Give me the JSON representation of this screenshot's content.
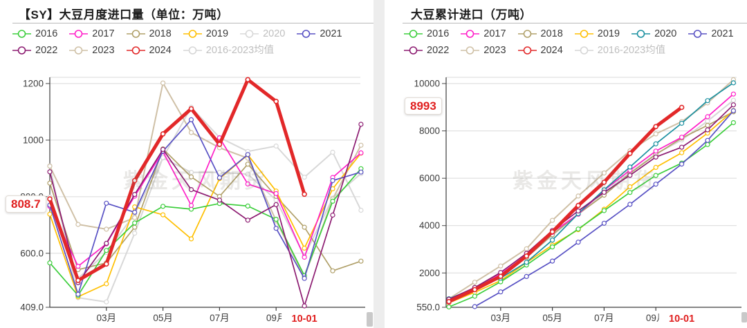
{
  "watermark": "紫金天风期货",
  "panels": [
    {
      "title": "【SY】大豆月度进口量（单位：万吨）",
      "callout": "808.7",
      "legend_rows": [
        [
          {
            "label": "2016",
            "color": "#3cce3c",
            "muted": false
          },
          {
            "label": "2017",
            "color": "#ff1ec8",
            "muted": false
          },
          {
            "label": "2018",
            "color": "#b0a069",
            "muted": false
          },
          {
            "label": "2019",
            "color": "#ffbf00",
            "muted": false
          },
          {
            "label": "2020",
            "color": "#d8d8d8",
            "muted": true
          },
          {
            "label": "2021",
            "color": "#5851c4",
            "muted": false
          }
        ],
        [
          {
            "label": "2022",
            "color": "#8c1b71",
            "muted": false
          },
          {
            "label": "2023",
            "color": "#cfc0a6",
            "muted": false
          },
          {
            "label": "2024",
            "color": "#e22829",
            "muted": false
          },
          {
            "label": "2016-2023均值",
            "color": "#d6d6d6",
            "muted": true
          }
        ]
      ],
      "chart_data": {
        "type": "line",
        "title": "【SY】大豆月度进口量（单位：万吨）",
        "ylabel": "万吨",
        "ylim": [
          409,
          1250
        ],
        "grid": true,
        "yticks": [
          {
            "label": "1200",
            "value": 1200
          },
          {
            "label": "1000",
            "value": 1000
          },
          {
            "label": "800.0",
            "value": 800
          },
          {
            "label": "600.0",
            "value": 600
          },
          {
            "label": "409.0",
            "value": 409
          }
        ],
        "xticks": [
          {
            "label": "03月",
            "month": 3
          },
          {
            "label": "05月",
            "month": 5
          },
          {
            "label": "07月",
            "month": 7
          },
          {
            "label": "09月",
            "month": 9
          }
        ],
        "highlight_xtick": {
          "label": "10-01",
          "month": 10,
          "color": "#e01f1f"
        },
        "latest_value_label": {
          "text": "808.7",
          "value": 808.7,
          "series": "2024"
        },
        "series": [
          {
            "name": "2016-2023均值",
            "color": "#d6d6d6",
            "width": 2,
            "values": [
              799,
              511,
              603,
              739,
              937,
              886,
              886,
              880,
              788,
              591,
              795,
              882
            ]
          },
          {
            "name": "2020",
            "color": "#d8d8d8",
            "width": 2,
            "values": [
              909,
              443,
              428,
              671,
              938,
              1116,
              1009,
              960,
              979,
              869,
              957,
              752
            ]
          },
          {
            "name": "2023",
            "color": "#cfc0a6",
            "width": 2,
            "values": [
              908,
              702,
              685,
              726,
              1202,
              1027,
              973,
              936,
              715,
              516,
              792,
              982
            ]
          },
          {
            "name": "2018",
            "color": "#b0a069",
            "width": 1.7,
            "values": [
              848,
              542,
              566,
              692,
              969,
              870,
              801,
              915,
              801,
              692,
              538,
              572
            ]
          },
          {
            "name": "2019",
            "color": "#ffbf00",
            "width": 1.7,
            "values": [
              738,
              446,
              492,
              764,
              736,
              651,
              864,
              948,
              820,
              618,
              828,
              954
            ]
          },
          {
            "name": "2016",
            "color": "#3cce3c",
            "width": 1.7,
            "values": [
              566,
              451,
              610,
              707,
              766,
              756,
              776,
              767,
              720,
              521,
              784,
              899
            ]
          },
          {
            "name": "2017",
            "color": "#ff1ec8",
            "width": 1.7,
            "values": [
              766,
              554,
              633,
              802,
              959,
              769,
              1008,
              845,
              811,
              586,
              868,
              955
            ]
          },
          {
            "name": "2021",
            "color": "#5851c4",
            "width": 1.7,
            "values": [
              770,
              455,
              777,
              745,
              961,
              1072,
              867,
              949,
              688,
              511,
              857,
              887
            ]
          },
          {
            "name": "2022",
            "color": "#8c1b71",
            "width": 1.7,
            "values": [
              888,
              496,
              635,
              808,
              967,
              825,
              788,
              717,
              772,
              414,
              735,
              1056
            ]
          },
          {
            "name": "2024",
            "color": "#e22829",
            "width": 5,
            "values": [
              792,
              504,
              562,
              857,
              1022,
              1111,
              985,
              1214,
              1137,
              808.7
            ]
          }
        ]
      }
    },
    {
      "title": "大豆累计进口（万吨）",
      "callout": "8993",
      "legend_rows": [
        [
          {
            "label": "2016",
            "color": "#3cce3c",
            "muted": false
          },
          {
            "label": "2017",
            "color": "#ff1ec8",
            "muted": false
          },
          {
            "label": "2018",
            "color": "#b0a069",
            "muted": false
          },
          {
            "label": "2019",
            "color": "#ffbf00",
            "muted": false
          },
          {
            "label": "2020",
            "color": "#1a90a0",
            "muted": false
          },
          {
            "label": "2021",
            "color": "#5851c4",
            "muted": false
          }
        ],
        [
          {
            "label": "2022",
            "color": "#8c1b71",
            "muted": false
          },
          {
            "label": "2023",
            "color": "#cfc0a6",
            "muted": false
          },
          {
            "label": "2024",
            "color": "#e22829",
            "muted": false
          },
          {
            "label": "2016-2023均值",
            "color": "#d6d6d6",
            "muted": true
          }
        ]
      ],
      "chart_data": {
        "type": "line",
        "title": "大豆累计进口（万吨）",
        "ylabel": "万吨",
        "ylim": [
          550,
          10400
        ],
        "grid": true,
        "yticks": [
          {
            "label": "10000",
            "value": 10000
          },
          {
            "label": "8000",
            "value": 8000
          },
          {
            "label": "6000",
            "value": 6000
          },
          {
            "label": "4000",
            "value": 4000
          },
          {
            "label": "2000",
            "value": 2000
          },
          {
            "label": "550.0",
            "value": 550
          }
        ],
        "xticks": [
          {
            "label": "03月",
            "month": 3
          },
          {
            "label": "05月",
            "month": 5
          },
          {
            "label": "07月",
            "month": 7
          },
          {
            "label": "09月",
            "month": 9
          }
        ],
        "highlight_xtick": {
          "label": "10-01",
          "month": 10,
          "color": "#e01f1f"
        },
        "latest_value_label": {
          "text": "8993",
          "value": 8993,
          "series": "2024"
        },
        "series": [
          {
            "name": "2016-2023均值",
            "color": "#d6d6d6",
            "width": 2,
            "values": [
              800,
              1311,
              1913,
              2652,
              3589,
              4475,
              5360,
              6240,
              7028,
              7618,
              8413,
              9295
            ]
          },
          {
            "name": "2023",
            "color": "#cfc0a6",
            "width": 2,
            "values": [
              908,
              1610,
              2295,
              3021,
              4223,
              5250,
              6223,
              7159,
              7874,
              8390,
              9182,
              10164
            ]
          },
          {
            "name": "2018",
            "color": "#b0a069",
            "width": 1.7,
            "values": [
              848,
              1390,
              1956,
              2648,
              3617,
              4487,
              5288,
              6203,
              7004,
              7696,
              8234,
              8806
            ]
          },
          {
            "name": "2019",
            "color": "#ffbf00",
            "width": 1.7,
            "values": [
              738,
              1184,
              1676,
              2440,
              3176,
              3827,
              4691,
              5639,
              6459,
              7077,
              7905,
              8859
            ]
          },
          {
            "name": "2016",
            "color": "#3cce3c",
            "width": 1.7,
            "values": [
              566,
              1017,
              1627,
              2334,
              3100,
              3856,
              4632,
              5399,
              6119,
              6640,
              7424,
              8350
            ]
          },
          {
            "name": "2017",
            "color": "#ff1ec8",
            "width": 1.7,
            "values": [
              766,
              1320,
              1953,
              2755,
              3714,
              4483,
              5491,
              6336,
              7147,
              7733,
              8601,
              9556
            ]
          },
          {
            "name": "2020",
            "color": "#1a90a0",
            "width": 1.7,
            "values": [
              909,
              1352,
              1780,
              2451,
              3389,
              4505,
              5514,
              6474,
              7453,
              8322,
              9279,
              10031
            ]
          },
          {
            "name": "2021",
            "color": "#5851c4",
            "width": 1.7,
            "values": [
              null,
              580,
              1200,
              1850,
              2500,
              3300,
              4100,
              4900,
              5750,
              6600,
              7600,
              8850
            ]
          },
          {
            "name": "2022",
            "color": "#8c1b71",
            "width": 1.7,
            "values": [
              888,
              1384,
              2019,
              2827,
              3794,
              4619,
              5407,
              6124,
              6896,
              7310,
              8045,
              9101
            ]
          },
          {
            "name": "2024",
            "color": "#e22829",
            "width": 5,
            "values": [
              792,
              1296,
              1858,
              2715,
              3737,
              4848,
              5833,
              7047,
              8184,
              8993
            ]
          }
        ]
      }
    }
  ]
}
